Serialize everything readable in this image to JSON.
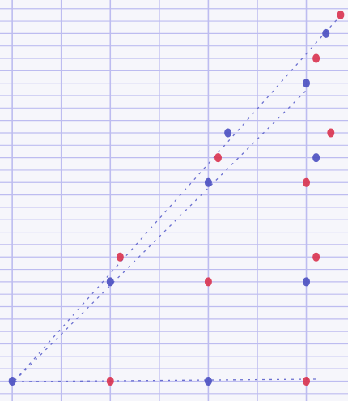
{
  "chart_data": {
    "type": "scatter",
    "xlim": [
      -0.25,
      6.85
    ],
    "ylim": [
      -1.6,
      30.7
    ],
    "xticks": [
      0,
      1,
      2,
      3,
      4,
      5,
      6
    ],
    "yticks": [
      -1,
      0,
      1,
      2,
      3,
      4,
      5,
      6,
      7,
      8,
      9,
      10,
      11,
      12,
      13,
      14,
      15,
      16,
      17,
      18,
      19,
      20,
      21,
      22,
      23,
      24,
      25,
      26,
      27,
      28,
      29,
      30
    ],
    "grid": true,
    "grid_color": "#bdbcf0",
    "series": [
      {
        "color": "#4a4fc0",
        "x": [
          0,
          2,
          4,
          4,
          4.4,
          6,
          6.2,
          6,
          6.4
        ],
        "values": [
          0,
          8,
          0,
          16,
          20,
          8,
          18,
          24,
          28
        ]
      },
      {
        "color": "#d9324e",
        "x": [
          2,
          2.2,
          4,
          4.2,
          6,
          6,
          6.2,
          6.5,
          6.2,
          6.7
        ],
        "values": [
          0,
          10,
          8,
          18,
          0,
          16,
          10,
          20,
          26,
          29.5
        ]
      }
    ]
  }
}
